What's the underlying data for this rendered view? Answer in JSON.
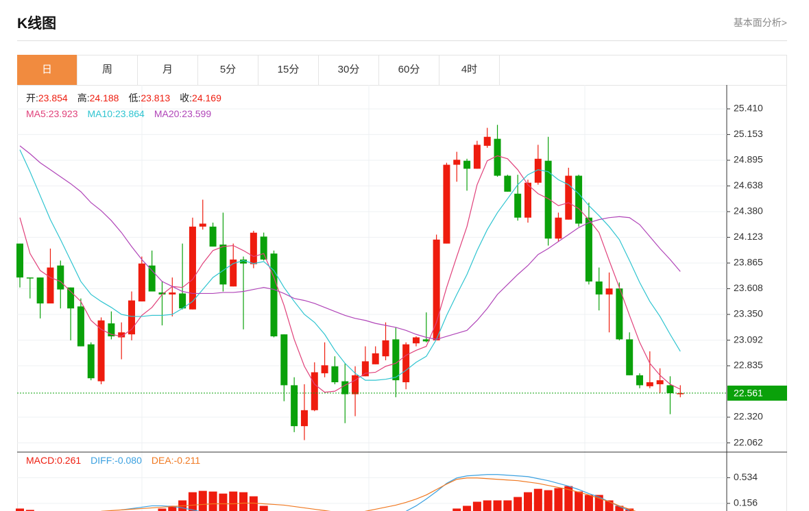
{
  "header": {
    "title": "K线图",
    "link": "基本面分析>"
  },
  "tabs": [
    "日",
    "周",
    "月",
    "5分",
    "15分",
    "30分",
    "60分",
    "4时"
  ],
  "chart_data": [
    {
      "type": "candlestick",
      "info": [
        {
          "label": "开:",
          "value": "23.854"
        },
        {
          "label": "高:",
          "value": "24.188"
        },
        {
          "label": "低:",
          "value": "23.813"
        },
        {
          "label": "收:",
          "value": "24.169"
        }
      ],
      "legend": [
        {
          "label": "MA5:",
          "value": "23.923",
          "color": "#e0407a"
        },
        {
          "label": "MA10:",
          "value": "23.864",
          "color": "#2ec4d0"
        },
        {
          "label": "MA20:",
          "value": "23.599",
          "color": "#b044b8"
        }
      ],
      "up_color": "#ee1c0e",
      "down_color": "#0aa10a",
      "open": [
        24.06,
        23.72,
        23.72,
        23.46,
        23.84,
        23.62,
        23.43,
        23.05,
        22.68,
        23.26,
        23.12,
        23.15,
        23.48,
        23.84,
        23.57,
        23.55,
        23.56,
        23.4,
        24.23,
        24.23,
        24.05,
        23.63,
        23.9,
        23.854,
        24.13,
        23.96,
        23.15,
        22.64,
        22.23,
        22.39,
        22.76,
        22.83,
        22.68,
        22.55,
        22.73,
        22.85,
        22.93,
        23.1,
        22.67,
        23.06,
        23.1,
        23.09,
        24.06,
        24.85,
        24.89,
        24.81,
        25.04,
        25.11,
        24.74,
        24.56,
        24.32,
        24.67,
        24.89,
        24.11,
        24.3,
        24.74,
        24.32,
        23.68,
        23.55,
        23.61,
        23.1,
        22.74,
        22.63,
        22.65,
        22.64,
        22.55
      ],
      "high": [
        24.06,
        23.72,
        23.72,
        24.01,
        23.89,
        23.62,
        23.51,
        23.07,
        23.32,
        23.38,
        23.27,
        23.58,
        23.93,
        23.99,
        23.68,
        23.72,
        24.06,
        24.32,
        24.5,
        24.27,
        24.37,
        24.06,
        23.93,
        24.188,
        24.17,
        23.99,
        23.15,
        22.72,
        22.65,
        22.87,
        23.07,
        22.93,
        22.86,
        22.83,
        23.03,
        23.03,
        23.27,
        23.22,
        23.07,
        23.13,
        23.37,
        24.15,
        24.87,
        24.98,
        24.91,
        25.09,
        25.22,
        25.25,
        24.75,
        24.75,
        24.7,
        25.05,
        25.13,
        24.37,
        24.82,
        24.75,
        24.47,
        23.82,
        23.77,
        23.67,
        23.17,
        22.76,
        22.98,
        22.81,
        22.73,
        22.64
      ],
      "low": [
        23.62,
        23.51,
        23.31,
        23.46,
        23.41,
        23.09,
        23.03,
        22.69,
        22.65,
        23.1,
        22.9,
        23.09,
        23.48,
        23.58,
        23.24,
        23.33,
        23.4,
        23.4,
        24.2,
        24.03,
        23.58,
        23.63,
        23.2,
        23.813,
        23.89,
        23.12,
        22.48,
        22.17,
        22.09,
        22.38,
        22.72,
        22.65,
        22.26,
        22.33,
        22.73,
        22.85,
        22.89,
        22.52,
        22.6,
        23.03,
        23.07,
        23.09,
        24.06,
        24.68,
        24.59,
        24.81,
        25.02,
        24.73,
        24.58,
        24.29,
        24.27,
        24.65,
        24.04,
        24.08,
        24.3,
        24.23,
        23.65,
        23.39,
        23.17,
        23.09,
        22.74,
        22.61,
        22.61,
        22.56,
        22.35,
        22.52
      ],
      "close": [
        23.72,
        23.71,
        23.46,
        23.82,
        23.6,
        23.41,
        23.03,
        22.71,
        23.29,
        23.13,
        23.17,
        23.49,
        23.86,
        23.58,
        23.55,
        23.57,
        23.41,
        24.23,
        24.26,
        24.03,
        23.65,
        23.9,
        23.86,
        24.169,
        23.9,
        23.13,
        22.64,
        22.23,
        22.39,
        22.77,
        22.84,
        22.67,
        22.55,
        22.74,
        22.88,
        22.96,
        23.09,
        22.69,
        23.05,
        23.12,
        23.08,
        24.1,
        24.85,
        24.9,
        24.81,
        25.05,
        25.13,
        24.74,
        24.58,
        24.32,
        24.67,
        24.91,
        24.11,
        24.32,
        24.74,
        24.26,
        23.68,
        23.55,
        23.61,
        23.1,
        22.74,
        22.64,
        22.67,
        22.69,
        22.56,
        22.561
      ],
      "series": [
        {
          "color": "#e0407a",
          "values": [
            24.32,
            23.96,
            23.79,
            23.72,
            23.68,
            23.58,
            23.48,
            23.29,
            23.2,
            23.15,
            23.13,
            23.2,
            23.34,
            23.42,
            23.55,
            23.63,
            23.62,
            23.7,
            23.86,
            23.99,
            24.03,
            24.04,
            23.99,
            23.93,
            23.96,
            23.72,
            23.44,
            23.1,
            22.83,
            22.65,
            22.57,
            22.58,
            22.64,
            22.69,
            22.76,
            22.77,
            22.83,
            22.86,
            22.94,
            22.99,
            23.03,
            23.27,
            23.62,
            23.93,
            24.23,
            24.65,
            24.89,
            24.94,
            24.91,
            24.8,
            24.65,
            24.56,
            24.51,
            24.44,
            24.47,
            24.41,
            24.3,
            24.17,
            23.89,
            23.62,
            23.34,
            23.07,
            22.86,
            22.74,
            22.65,
            22.6
          ]
        },
        {
          "color": "#2ec4d0",
          "values": [
            25.0,
            24.78,
            24.54,
            24.3,
            24.1,
            23.89,
            23.68,
            23.55,
            23.48,
            23.42,
            23.35,
            23.33,
            23.33,
            23.34,
            23.34,
            23.35,
            23.41,
            23.48,
            23.6,
            23.72,
            23.79,
            23.86,
            23.89,
            23.86,
            23.88,
            23.79,
            23.62,
            23.48,
            23.35,
            23.27,
            23.15,
            22.99,
            22.86,
            22.76,
            22.69,
            22.69,
            22.7,
            22.72,
            22.79,
            22.87,
            22.93,
            23.1,
            23.34,
            23.55,
            23.75,
            23.99,
            24.2,
            24.37,
            24.51,
            24.65,
            24.75,
            24.8,
            24.78,
            24.7,
            24.65,
            24.56,
            24.44,
            24.34,
            24.23,
            24.1,
            23.89,
            23.67,
            23.48,
            23.33,
            23.15,
            22.98
          ]
        },
        {
          "color": "#b044b8",
          "values": [
            25.04,
            24.96,
            24.87,
            24.8,
            24.73,
            24.66,
            24.58,
            24.47,
            24.39,
            24.29,
            24.17,
            24.03,
            23.9,
            23.79,
            23.68,
            23.63,
            23.58,
            23.56,
            23.56,
            23.56,
            23.57,
            23.57,
            23.58,
            23.6,
            23.62,
            23.6,
            23.56,
            23.51,
            23.49,
            23.46,
            23.42,
            23.38,
            23.34,
            23.31,
            23.29,
            23.26,
            23.24,
            23.22,
            23.19,
            23.15,
            23.12,
            23.1,
            23.13,
            23.16,
            23.19,
            23.29,
            23.41,
            23.55,
            23.65,
            23.75,
            23.84,
            23.95,
            24.01,
            24.08,
            24.15,
            24.22,
            24.27,
            24.3,
            24.32,
            24.33,
            24.32,
            24.25,
            24.13,
            24.01,
            23.9,
            23.78
          ]
        }
      ],
      "current_price": 22.561,
      "current_color": "#0aa10a",
      "ylim": [
        21.97,
        25.65
      ],
      "yticks": [
        {
          "value": 25.41,
          "label": "25.410"
        },
        {
          "value": 25.153,
          "label": "25.153"
        },
        {
          "value": 24.895,
          "label": "24.895"
        },
        {
          "value": 24.638,
          "label": "24.638"
        },
        {
          "value": 24.38,
          "label": "24.380"
        },
        {
          "value": 24.123,
          "label": "24.123"
        },
        {
          "value": 23.865,
          "label": "23.865"
        },
        {
          "value": 23.608,
          "label": "23.608"
        },
        {
          "value": 23.35,
          "label": "23.350"
        },
        {
          "value": 23.092,
          "label": "23.092"
        },
        {
          "value": 22.835,
          "label": "22.835"
        },
        {
          "value": 22.32,
          "label": "22.320"
        },
        {
          "value": 22.062,
          "label": "22.062"
        }
      ],
      "grid": true
    },
    {
      "type": "macd",
      "legend": [
        {
          "label": "MACD:",
          "value": "0.261",
          "color": "#ee1c0e"
        },
        {
          "label": "DIFF:",
          "value": "-0.080",
          "color": "#3aa0e0"
        },
        {
          "label": "DEA:",
          "value": "-0.211",
          "color": "#f07820"
        }
      ],
      "histogram": {
        "color": "#ee1c0e",
        "values": [
          0.08,
          0.06,
          null,
          null,
          null,
          null,
          null,
          null,
          null,
          null,
          null,
          null,
          null,
          null,
          0.08,
          0.12,
          0.2,
          0.32,
          0.34,
          0.33,
          0.3,
          0.33,
          0.32,
          0.26,
          0.12,
          null,
          null,
          null,
          null,
          null,
          null,
          null,
          null,
          null,
          null,
          null,
          null,
          null,
          null,
          null,
          null,
          null,
          null,
          0.08,
          0.12,
          0.18,
          0.2,
          0.2,
          0.2,
          0.25,
          0.32,
          0.37,
          0.35,
          0.38,
          0.41,
          0.33,
          0.28,
          0.28,
          0.2,
          0.12,
          0.08,
          null,
          null,
          null,
          null,
          null
        ]
      },
      "series": [
        {
          "color": "#3aa0e0",
          "values": [
            null,
            null,
            null,
            null,
            null,
            null,
            null,
            null,
            null,
            null,
            0.06,
            0.08,
            0.1,
            0.12,
            0.12,
            0.11,
            0.09,
            0.06,
            0.03,
            null,
            null,
            null,
            null,
            null,
            null,
            null,
            null,
            null,
            null,
            null,
            null,
            null,
            null,
            null,
            null,
            null,
            null,
            null,
            0.04,
            0.12,
            0.22,
            0.33,
            0.45,
            0.53,
            0.56,
            0.57,
            0.58,
            0.58,
            0.57,
            0.56,
            0.55,
            0.52,
            0.49,
            0.45,
            0.41,
            0.36,
            0.3,
            0.25,
            0.18,
            0.11,
            0.05,
            null,
            null,
            null,
            null,
            null
          ]
        },
        {
          "color": "#f07820",
          "values": [
            null,
            null,
            null,
            null,
            null,
            null,
            null,
            null,
            0.04,
            0.05,
            0.06,
            0.07,
            0.08,
            0.09,
            0.1,
            0.11,
            0.12,
            0.13,
            0.14,
            0.15,
            0.15,
            0.15,
            0.16,
            0.16,
            0.15,
            0.14,
            0.13,
            0.11,
            0.09,
            0.07,
            0.05,
            0.03,
            0.02,
            0.02,
            0.04,
            0.07,
            0.1,
            0.13,
            0.17,
            0.22,
            0.28,
            0.36,
            0.44,
            0.51,
            0.53,
            0.53,
            0.52,
            0.51,
            0.5,
            0.49,
            0.47,
            0.45,
            0.42,
            0.39,
            0.36,
            0.32,
            0.28,
            0.23,
            0.18,
            0.12,
            0.07,
            0.02,
            null,
            null,
            null,
            null
          ]
        }
      ],
      "ylim": [
        -0.5,
        0.89
      ],
      "yticks": [
        0.534,
        0.156
      ],
      "grid": true
    }
  ]
}
